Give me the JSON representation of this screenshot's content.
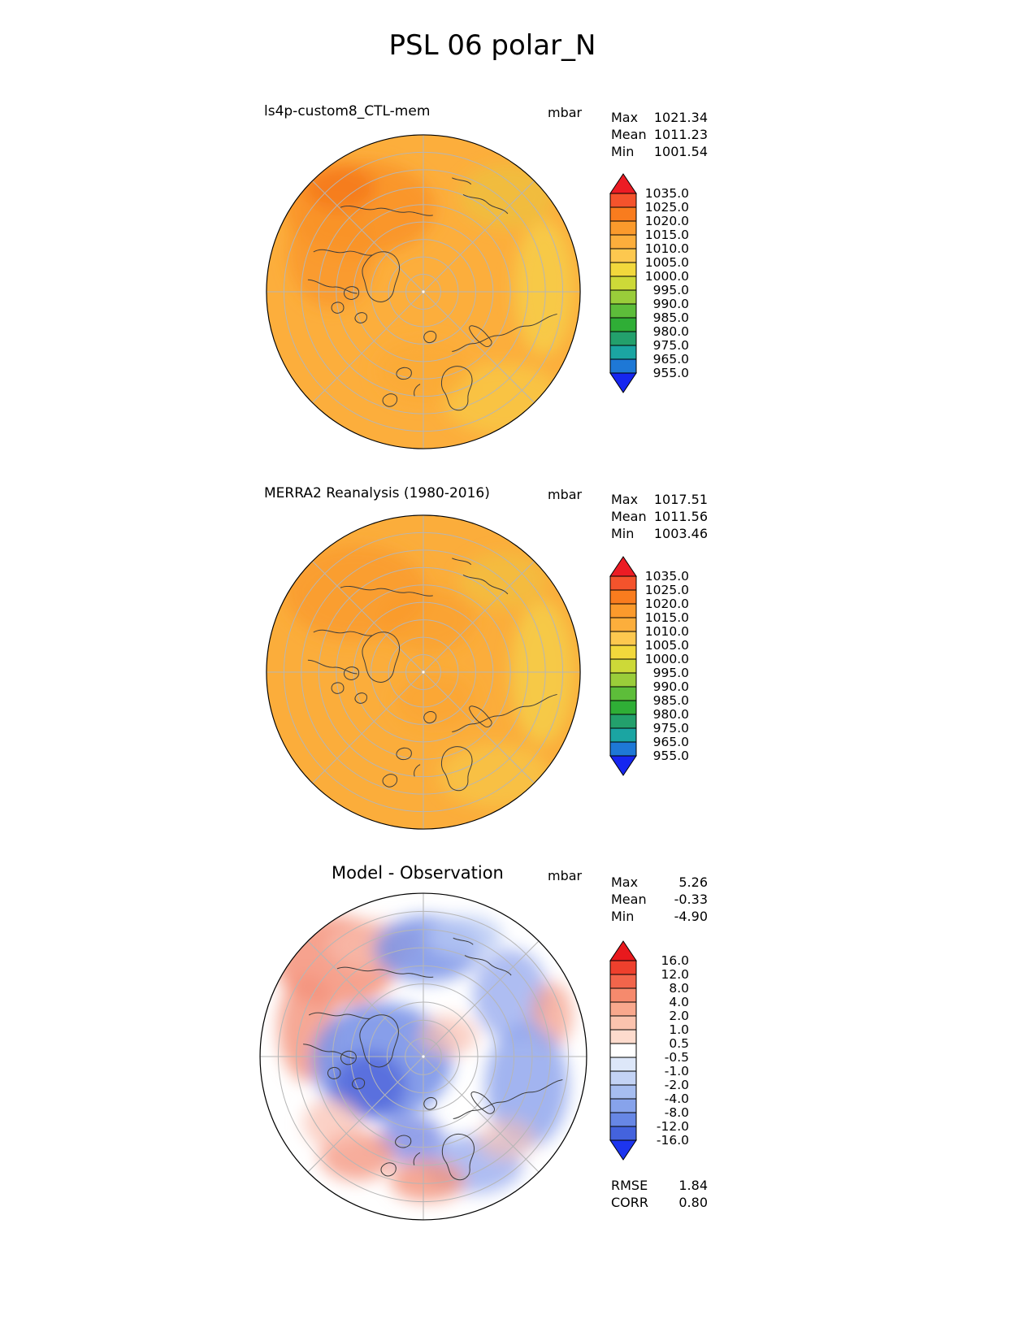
{
  "page_title": "PSL 06 polar_N",
  "labels": {
    "max": "Max",
    "mean": "Mean",
    "min": "Min",
    "rmse": "RMSE",
    "corr": "CORR"
  },
  "chart_data": [
    {
      "type": "heatmap",
      "projection": "polar_N",
      "title": "ls4p-custom8_CTL-mem",
      "units": "mbar",
      "stats": {
        "max": "1021.34",
        "mean": "1011.23",
        "min": "1001.54"
      },
      "colorbar": {
        "levels": [
          "1035.0",
          "1025.0",
          "1020.0",
          "1015.0",
          "1010.0",
          "1005.0",
          "1000.0",
          "995.0",
          "990.0",
          "985.0",
          "980.0",
          "975.0",
          "965.0",
          "955.0"
        ],
        "colors": [
          "#ec1c24",
          "#f4532c",
          "#f97c1e",
          "#fb9a2c",
          "#fcae3c",
          "#fdc84f",
          "#f2d83c",
          "#cdd938",
          "#9acd3a",
          "#5dbd3a",
          "#2fae36",
          "#23a06c",
          "#1ba5a2",
          "#1e78d6",
          "#1626f0"
        ]
      }
    },
    {
      "type": "heatmap",
      "projection": "polar_N",
      "title": "MERRA2 Reanalysis (1980-2016)",
      "units": "mbar",
      "stats": {
        "max": "1017.51",
        "mean": "1011.56",
        "min": "1003.46"
      },
      "colorbar": {
        "levels": [
          "1035.0",
          "1025.0",
          "1020.0",
          "1015.0",
          "1010.0",
          "1005.0",
          "1000.0",
          "995.0",
          "990.0",
          "985.0",
          "980.0",
          "975.0",
          "965.0",
          "955.0"
        ],
        "colors": [
          "#ec1c24",
          "#f4532c",
          "#f97c1e",
          "#fb9a2c",
          "#fcae3c",
          "#fdc84f",
          "#f2d83c",
          "#cdd938",
          "#9acd3a",
          "#5dbd3a",
          "#2fae36",
          "#23a06c",
          "#1ba5a2",
          "#1e78d6",
          "#1626f0"
        ]
      }
    },
    {
      "type": "heatmap",
      "projection": "polar_N",
      "title": "Model - Observation",
      "units": "mbar",
      "stats": {
        "max": "5.26",
        "mean": "-0.33",
        "min": "-4.90"
      },
      "rmse": "1.84",
      "corr": "0.80",
      "colorbar": {
        "levels": [
          "16.0",
          "12.0",
          "8.0",
          "4.0",
          "2.0",
          "1.0",
          "0.5",
          "-0.5",
          "-1.0",
          "-2.0",
          "-4.0",
          "-8.0",
          "-12.0",
          "-16.0"
        ],
        "colors": [
          "#e8191d",
          "#ee402d",
          "#f2654b",
          "#f68a6d",
          "#f9a88d",
          "#fbc3ae",
          "#fddbcd",
          "#ffffff",
          "#dde7f9",
          "#c3d3f5",
          "#a6bdf0",
          "#87a3eb",
          "#6787e5",
          "#4463dd",
          "#1d35ee"
        ]
      }
    }
  ]
}
